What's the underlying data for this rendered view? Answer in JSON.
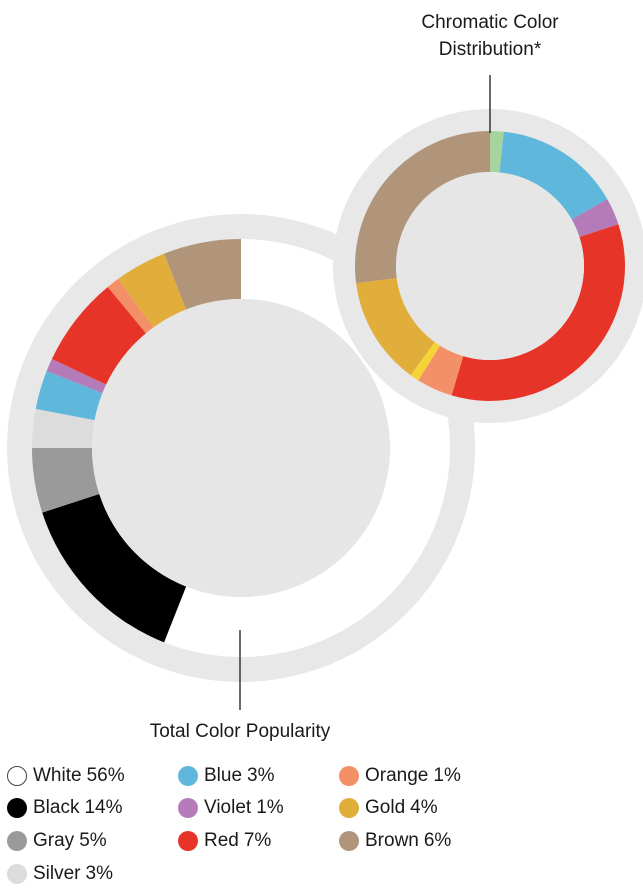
{
  "chart_data": [
    {
      "type": "pie",
      "variant": "donut",
      "title": "Total Color Popularity",
      "unit": "%",
      "series": [
        {
          "label": "White",
          "value": 56,
          "color": "#ffffff"
        },
        {
          "label": "Black",
          "value": 14,
          "color": "#000000"
        },
        {
          "label": "Gray",
          "value": 5,
          "color": "#9a9a9a"
        },
        {
          "label": "Silver",
          "value": 3,
          "color": "#dcdcdc"
        },
        {
          "label": "Blue",
          "value": 3,
          "color": "#5fb8dc"
        },
        {
          "label": "Violet",
          "value": 1,
          "color": "#b57bb8"
        },
        {
          "label": "Red",
          "value": 7,
          "color": "#e63528"
        },
        {
          "label": "Orange",
          "value": 1,
          "color": "#f39067"
        },
        {
          "label": "Gold",
          "value": 4,
          "color": "#e1ae3c"
        },
        {
          "label": "Brown",
          "value": 6,
          "color": "#b0957a"
        }
      ]
    },
    {
      "type": "pie",
      "variant": "donut",
      "title": "Chromatic Color Distribution*",
      "unit": "%",
      "series": [
        {
          "label": "Green",
          "value": 1.5,
          "color": "#a6d49e"
        },
        {
          "label": "Blue",
          "value": 14,
          "color": "#5fb8dc"
        },
        {
          "label": "Violet",
          "value": 3,
          "color": "#b57bb8"
        },
        {
          "label": "Red",
          "value": 32,
          "color": "#e63528"
        },
        {
          "label": "Orange",
          "value": 4,
          "color": "#f39067"
        },
        {
          "label": "Yellow",
          "value": 1,
          "color": "#f5d535"
        },
        {
          "label": "Gold",
          "value": 12,
          "color": "#e1ae3c"
        },
        {
          "label": "Brown",
          "value": 25,
          "color": "#b0957a"
        }
      ]
    }
  ],
  "legend": {
    "items": [
      {
        "name": "White",
        "pct": "56%",
        "color": "#ffffff"
      },
      {
        "name": "Black",
        "pct": "14%",
        "color": "#000000"
      },
      {
        "name": "Gray",
        "pct": "5%",
        "color": "#9a9a9a"
      },
      {
        "name": "Silver",
        "pct": "3%",
        "color": "#dcdcdc"
      },
      {
        "name": "Blue",
        "pct": "3%",
        "color": "#5fb8dc"
      },
      {
        "name": "Violet",
        "pct": "1%",
        "color": "#b57bb8"
      },
      {
        "name": "Red",
        "pct": "7%",
        "color": "#e63528"
      },
      {
        "name": "Orange",
        "pct": "1%",
        "color": "#f39067"
      },
      {
        "name": "Gold",
        "pct": "4%",
        "color": "#e1ae3c"
      },
      {
        "name": "Brown",
        "pct": "6%",
        "color": "#b0957a"
      }
    ]
  },
  "colors": {
    "track": "#e8e8e8",
    "center": "#e6e6e6",
    "white_outline": "#444444"
  }
}
